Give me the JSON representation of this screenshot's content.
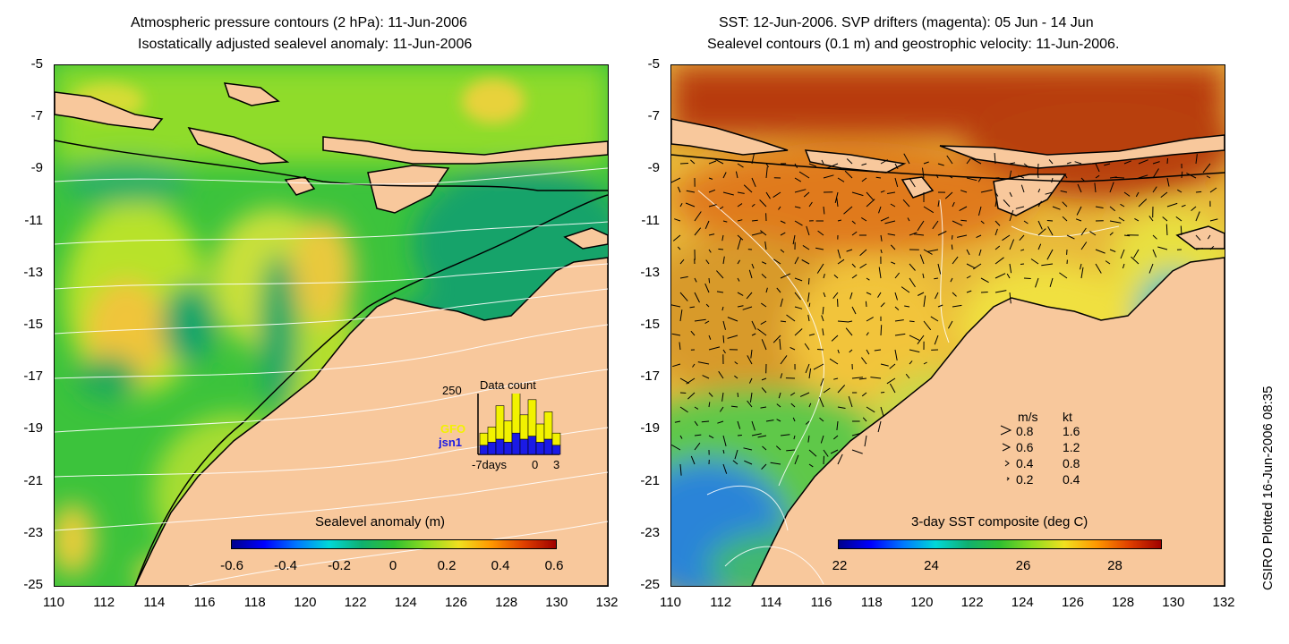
{
  "left_panel": {
    "title_line1": "Atmospheric pressure contours (2 hPa): 11-Jun-2006",
    "title_line2": "Isostatically adjusted sealevel anomaly: 11-Jun-2006",
    "colorbar_label": "Sealevel anomaly (m)",
    "colorbar_ticks": [
      "-0.6",
      "-0.4",
      "-0.2",
      "0",
      "0.2",
      "0.4",
      "0.6"
    ],
    "inset": {
      "max_label": "250",
      "title": "Data count",
      "gfo_label": "GFO",
      "jsn_label": "jsn1",
      "axis_start": "-7days",
      "axis_mid": "0",
      "axis_end": "3",
      "gfo_color": "#f2f200",
      "jsn_color": "#1a1ae6"
    }
  },
  "right_panel": {
    "title_line1": "SST: 12-Jun-2006. SVP drifters (magenta): 05 Jun - 14 Jun",
    "title_line2": "Sealevel contours (0.1 m) and geostrophic velocity: 11-Jun-2006.",
    "colorbar_label": "3-day SST composite (deg C)",
    "colorbar_ticks": [
      "22",
      "24",
      "26",
      "28"
    ],
    "legend": {
      "header_ms": "m/s",
      "header_kt": "kt",
      "rows": [
        {
          "ms": "0.8",
          "kt": "1.6"
        },
        {
          "ms": "0.6",
          "kt": "1.2"
        },
        {
          "ms": "0.4",
          "kt": "0.8"
        },
        {
          "ms": "0.2",
          "kt": "0.4"
        }
      ]
    }
  },
  "y_axis_ticks": [
    "-5",
    "-7",
    "-9",
    "-11",
    "-13",
    "-15",
    "-17",
    "-19",
    "-21",
    "-23",
    "-25"
  ],
  "x_axis_ticks": [
    "110",
    "112",
    "114",
    "116",
    "118",
    "120",
    "122",
    "124",
    "126",
    "128",
    "130",
    "132"
  ],
  "credit": "CSIRO Plotted 16-Jun-2006 08:35",
  "colors": {
    "land": "#f8c89c",
    "coast": "#000000",
    "contour": "#ffffff"
  }
}
